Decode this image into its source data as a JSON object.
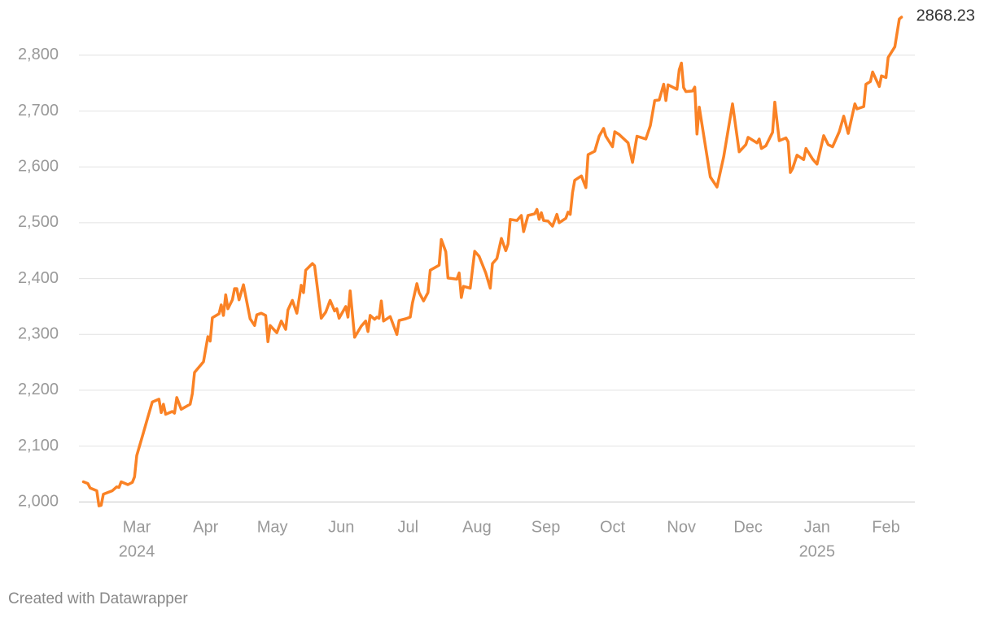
{
  "chart_data": {
    "type": "line",
    "color": "#fa8225",
    "grid": true,
    "credit": "Created with Datawrapper",
    "x": [
      36,
      38,
      39,
      42,
      43,
      44,
      45,
      49,
      51,
      52,
      53,
      56,
      58,
      59,
      60,
      63,
      65,
      67,
      70,
      71,
      72,
      73,
      76,
      77,
      78,
      80,
      84,
      85,
      86,
      90,
      92,
      93,
      94,
      97,
      98,
      99,
      100,
      101,
      103,
      104,
      105,
      106,
      108,
      111,
      113,
      114,
      116,
      118,
      119,
      120,
      123,
      125,
      127,
      128,
      130,
      132,
      134,
      135,
      136,
      139,
      140,
      143,
      145,
      147,
      149,
      150,
      151,
      154,
      155,
      156,
      158,
      161,
      163,
      164,
      165,
      167,
      168,
      169,
      170,
      171,
      174,
      177,
      178,
      181,
      183,
      184,
      186,
      187,
      189,
      191,
      192,
      196,
      197,
      199,
      200,
      204,
      205,
      206,
      207,
      210,
      212,
      214,
      217,
      219,
      220,
      222,
      224,
      226,
      227,
      228,
      231,
      233,
      234,
      236,
      239,
      240,
      241,
      242,
      243,
      245,
      247,
      249,
      250,
      253,
      254,
      255,
      256,
      257,
      260,
      262,
      263,
      266,
      268,
      270,
      271,
      274,
      275,
      277,
      281,
      283,
      285,
      289,
      291,
      293,
      295,
      297,
      298,
      299,
      303,
      304,
      305,
      306,
      307,
      310,
      311,
      312,
      313,
      318,
      321,
      324,
      326,
      328,
      331,
      334,
      335,
      339,
      340,
      341,
      343,
      346,
      347,
      349,
      352,
      353,
      354,
      355,
      357,
      360,
      361,
      364,
      366,
      369,
      371,
      373,
      376,
      378,
      380,
      383,
      384,
      387,
      388,
      390,
      391,
      394,
      395,
      397,
      398,
      401,
      403,
      404
    ],
    "values": [
      2036,
      2033,
      2025,
      2020,
      1993,
      1994,
      2014,
      2020,
      2027,
      2026,
      2036,
      2031,
      2035,
      2045,
      2083,
      2124,
      2152,
      2179,
      2184,
      2160,
      2175,
      2157,
      2162,
      2159,
      2187,
      2166,
      2175,
      2194,
      2232,
      2251,
      2296,
      2288,
      2330,
      2337,
      2353,
      2334,
      2371,
      2346,
      2362,
      2382,
      2382,
      2362,
      2389,
      2328,
      2316,
      2335,
      2338,
      2334,
      2287,
      2316,
      2303,
      2324,
      2309,
      2344,
      2361,
      2338,
      2388,
      2375,
      2415,
      2427,
      2423,
      2329,
      2340,
      2361,
      2342,
      2346,
      2329,
      2350,
      2331,
      2378,
      2295,
      2315,
      2324,
      2305,
      2334,
      2327,
      2331,
      2329,
      2360,
      2324,
      2332,
      2300,
      2325,
      2328,
      2331,
      2356,
      2391,
      2375,
      2360,
      2375,
      2415,
      2424,
      2470,
      2448,
      2401,
      2399,
      2410,
      2366,
      2386,
      2383,
      2449,
      2440,
      2410,
      2383,
      2427,
      2436,
      2472,
      2450,
      2462,
      2506,
      2504,
      2513,
      2484,
      2513,
      2516,
      2524,
      2506,
      2518,
      2504,
      2503,
      2494,
      2515,
      2500,
      2508,
      2519,
      2515,
      2554,
      2576,
      2584,
      2563,
      2622,
      2628,
      2655,
      2669,
      2655,
      2636,
      2663,
      2658,
      2643,
      2608,
      2655,
      2650,
      2674,
      2719,
      2720,
      2748,
      2719,
      2747,
      2739,
      2774,
      2786,
      2742,
      2735,
      2736,
      2743,
      2659,
      2707,
      2582,
      2564,
      2618,
      2666,
      2713,
      2627,
      2640,
      2653,
      2643,
      2650,
      2633,
      2638,
      2662,
      2716,
      2647,
      2652,
      2645,
      2590,
      2597,
      2621,
      2613,
      2633,
      2614,
      2605,
      2656,
      2640,
      2636,
      2663,
      2691,
      2660,
      2713,
      2704,
      2708,
      2748,
      2753,
      2770,
      2744,
      2763,
      2760,
      2796,
      2815,
      2865,
      2868.23
    ],
    "xlim": [
      34,
      410
    ],
    "xticks": [
      {
        "value": 60,
        "label": "Mar"
      },
      {
        "value": 91,
        "label": "Apr"
      },
      {
        "value": 121,
        "label": "May"
      },
      {
        "value": 152,
        "label": "Jun"
      },
      {
        "value": 182,
        "label": "Jul"
      },
      {
        "value": 213,
        "label": "Aug"
      },
      {
        "value": 244,
        "label": "Sep"
      },
      {
        "value": 274,
        "label": "Oct"
      },
      {
        "value": 305,
        "label": "Nov"
      },
      {
        "value": 335,
        "label": "Dec"
      },
      {
        "value": 366,
        "label": "Jan"
      },
      {
        "value": 397,
        "label": "Feb"
      }
    ],
    "xtick_years": [
      {
        "value": 60,
        "label": "2024"
      },
      {
        "value": 366,
        "label": "2025"
      }
    ],
    "ylim": [
      1980,
      2880
    ],
    "yticks": [
      {
        "value": 2000,
        "label": "2,000"
      },
      {
        "value": 2100,
        "label": "2,100"
      },
      {
        "value": 2200,
        "label": "2,200"
      },
      {
        "value": 2300,
        "label": "2,300"
      },
      {
        "value": 2400,
        "label": "2,400"
      },
      {
        "value": 2500,
        "label": "2,500"
      },
      {
        "value": 2600,
        "label": "2,600"
      },
      {
        "value": 2700,
        "label": "2,700"
      },
      {
        "value": 2800,
        "label": "2,800"
      }
    ]
  }
}
